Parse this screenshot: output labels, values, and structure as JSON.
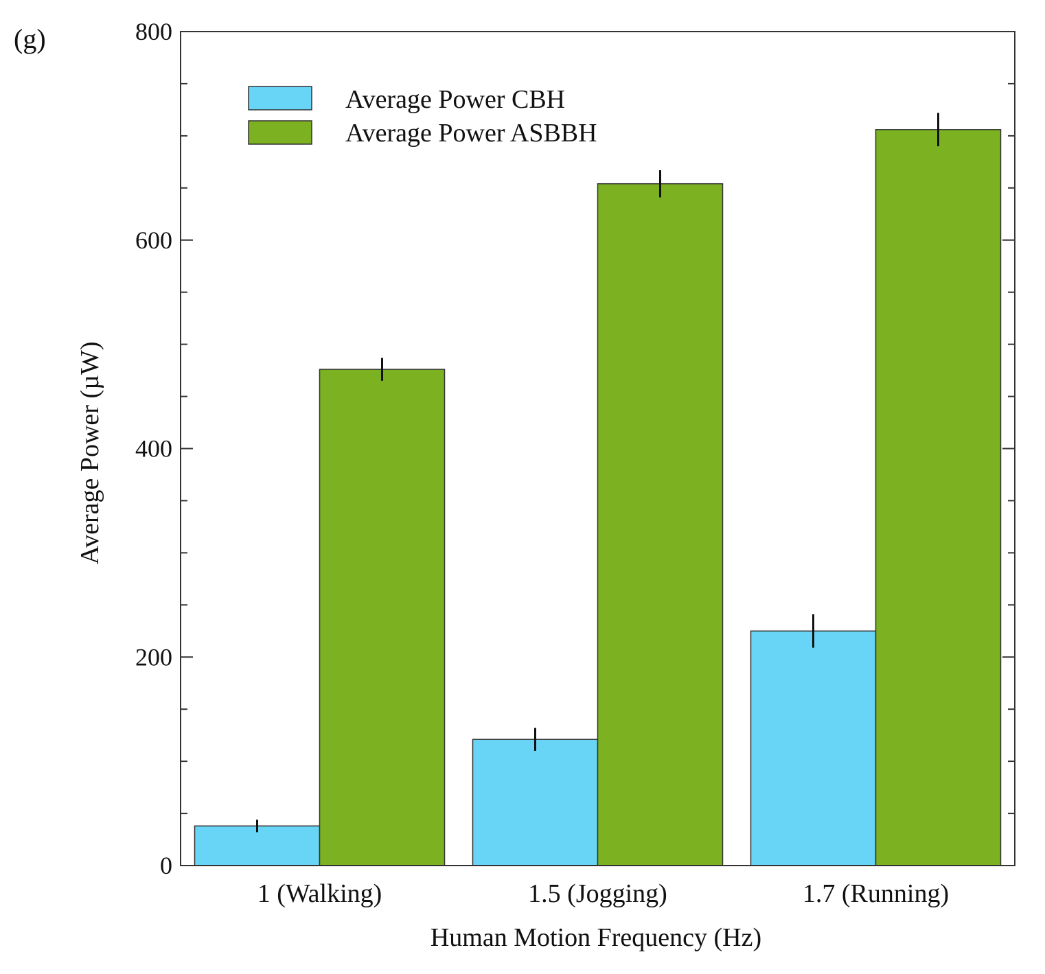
{
  "chart_data": {
    "type": "bar",
    "panel_label": "(g)",
    "title": "",
    "xlabel": "Human Motion Frequency (Hz)",
    "ylabel": "Average Power  (µW)",
    "categories": [
      "1 (Walking)",
      "1.5 (Jogging)",
      "1.7 (Running)"
    ],
    "series": [
      {
        "name": "Average Power CBH",
        "color": "#69D5F6",
        "values": [
          38,
          121,
          225
        ],
        "errors": [
          6,
          11,
          16
        ]
      },
      {
        "name": "Average Power ASBBH",
        "color": "#7CB121",
        "values": [
          476,
          654,
          706
        ],
        "errors": [
          11,
          13,
          16
        ]
      }
    ],
    "ylim": [
      0,
      800
    ],
    "yticks": [
      0,
      200,
      400,
      600,
      800
    ],
    "minor_tick_step": 50,
    "grid": false,
    "legend_position": "top-left"
  }
}
